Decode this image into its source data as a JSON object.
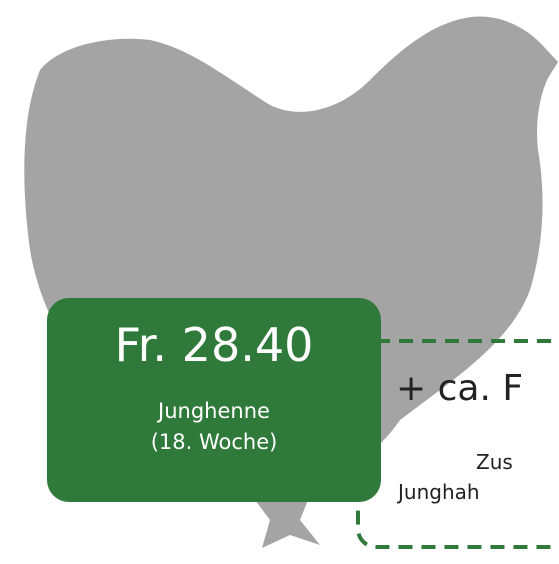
{
  "price_box": {
    "price": "Fr. 28.40",
    "label": "Junghenne",
    "age": "(18. Woche)"
  },
  "extra_box": {
    "headline": "+ ca. F",
    "line1": "Zus",
    "line2": "Junghah"
  }
}
